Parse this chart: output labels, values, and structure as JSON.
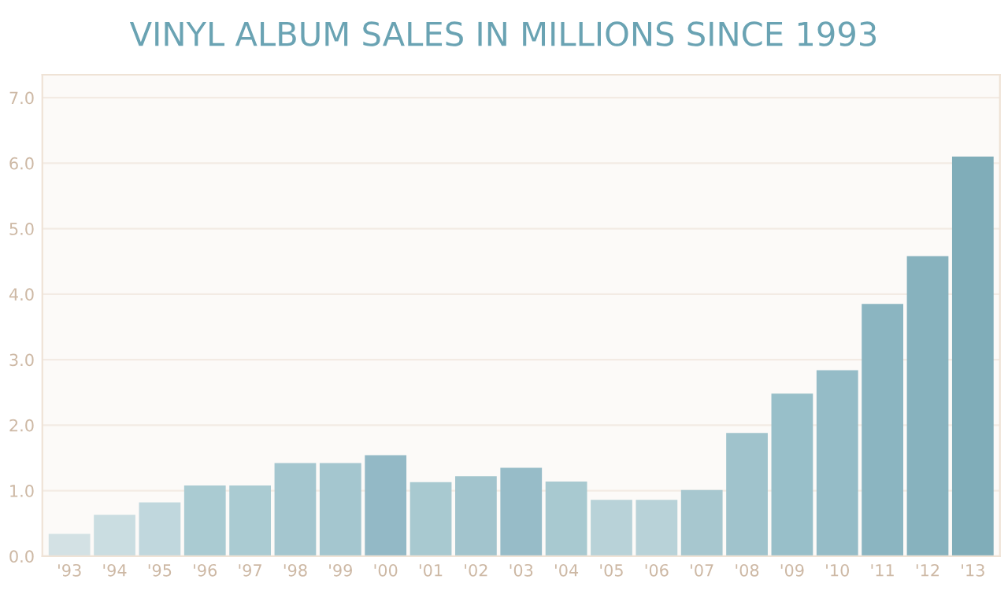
{
  "chart_data": {
    "type": "bar",
    "title": "VINYL ALBUM SALES IN MILLIONS SINCE 1993",
    "categories": [
      "'93",
      "'94",
      "'95",
      "'96",
      "'97",
      "'98",
      "'99",
      "'00",
      "'01",
      "'02",
      "'03",
      "'04",
      "'05",
      "'06",
      "'07",
      "'08",
      "'09",
      "'10",
      "'11",
      "'12",
      "'13"
    ],
    "values": [
      0.34,
      0.63,
      0.82,
      1.08,
      1.08,
      1.42,
      1.42,
      1.54,
      1.13,
      1.22,
      1.35,
      1.14,
      0.86,
      0.86,
      1.01,
      1.88,
      2.48,
      2.84,
      3.85,
      4.58,
      6.1
    ],
    "colors": [
      "#d3e1e4",
      "#cadde1",
      "#c0d7dd",
      "#aacbd2",
      "#aacbd2",
      "#a4c6cf",
      "#a4c6cf",
      "#93b9c6",
      "#a8c9d0",
      "#a2c4cd",
      "#97bcc8",
      "#a8c9d0",
      "#b8d2d8",
      "#b8d2d8",
      "#a7c7cf",
      "#a0c3cc",
      "#98bfc9",
      "#95bcc7",
      "#8bb5c1",
      "#87b2be",
      "#80adb9"
    ],
    "ylim": [
      0,
      7.35
    ],
    "yticks": [
      {
        "value": 0,
        "label": "0.0"
      },
      {
        "value": 1,
        "label": "1.0"
      },
      {
        "value": 2,
        "label": "2.0"
      },
      {
        "value": 3,
        "label": "3.0"
      },
      {
        "value": 4,
        "label": "4.0"
      },
      {
        "value": 5,
        "label": "5.0"
      },
      {
        "value": 6,
        "label": "6.0"
      },
      {
        "value": 7,
        "label": "7.0"
      }
    ],
    "grid": "y"
  }
}
